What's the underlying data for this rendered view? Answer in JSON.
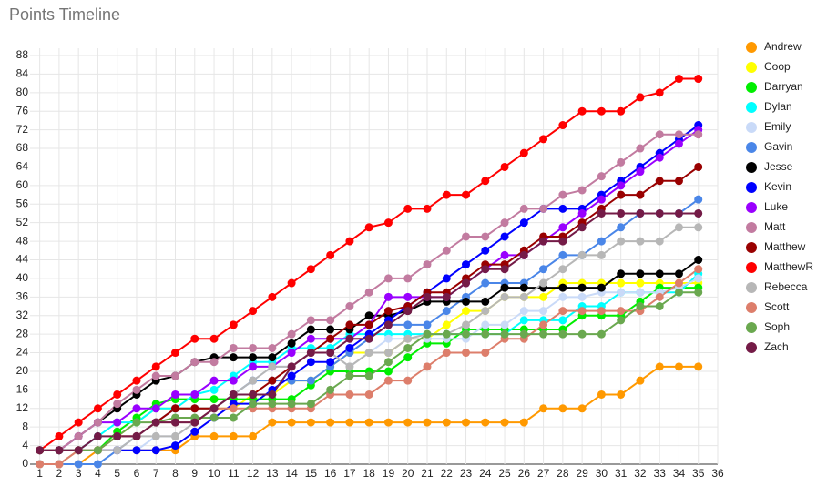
{
  "chart_data": {
    "type": "line",
    "title": "Points Timeline",
    "x": [
      1,
      2,
      3,
      4,
      5,
      6,
      7,
      8,
      9,
      10,
      11,
      12,
      13,
      14,
      15,
      16,
      17,
      18,
      19,
      20,
      21,
      22,
      23,
      24,
      25,
      26,
      27,
      28,
      29,
      30,
      31,
      32,
      33,
      34,
      35
    ],
    "xlim": [
      0.5,
      36
    ],
    "xticks": [
      1,
      2,
      3,
      4,
      5,
      6,
      7,
      8,
      9,
      10,
      11,
      12,
      13,
      14,
      15,
      16,
      17,
      18,
      19,
      20,
      21,
      22,
      23,
      24,
      25,
      26,
      27,
      28,
      29,
      30,
      31,
      32,
      33,
      34,
      35,
      36
    ],
    "ylim": [
      0,
      88
    ],
    "yticks": [
      0,
      4,
      8,
      12,
      16,
      20,
      24,
      28,
      32,
      36,
      40,
      44,
      48,
      52,
      56,
      60,
      64,
      68,
      72,
      76,
      80,
      84,
      88
    ],
    "grid": true,
    "legend": "right",
    "series": [
      {
        "name": "Andrew",
        "color": "#ff9900",
        "values": [
          0,
          0,
          0,
          3,
          3,
          3,
          3,
          3,
          6,
          6,
          6,
          6,
          9,
          9,
          9,
          9,
          9,
          9,
          9,
          9,
          9,
          9,
          9,
          9,
          9,
          9,
          12,
          12,
          12,
          15,
          15,
          18,
          21,
          21,
          21
        ]
      },
      {
        "name": "Coop",
        "color": "#ffff00",
        "values": [
          0,
          0,
          3,
          3,
          6,
          9,
          12,
          12,
          12,
          12,
          12,
          15,
          15,
          18,
          18,
          21,
          24,
          24,
          24,
          27,
          27,
          30,
          33,
          33,
          36,
          36,
          36,
          39,
          39,
          39,
          39,
          39,
          39,
          39,
          39
        ]
      },
      {
        "name": "Darryan",
        "color": "#00ee00",
        "values": [
          3,
          3,
          3,
          3,
          7,
          10,
          13,
          14,
          14,
          14,
          14,
          14,
          14,
          14,
          17,
          20,
          20,
          20,
          20,
          23,
          26,
          26,
          29,
          29,
          29,
          29,
          29,
          29,
          32,
          32,
          32,
          35,
          38,
          38,
          38
        ]
      },
      {
        "name": "Dylan",
        "color": "#00ffff",
        "values": [
          3,
          3,
          3,
          6,
          9,
          9,
          12,
          12,
          15,
          16,
          19,
          22,
          22,
          25,
          25,
          25,
          28,
          28,
          28,
          28,
          28,
          28,
          28,
          28,
          28,
          31,
          31,
          31,
          34,
          34,
          37,
          37,
          37,
          37,
          41
        ]
      },
      {
        "name": "Emily",
        "color": "#c9daf8",
        "values": [
          0,
          0,
          0,
          0,
          3,
          3,
          6,
          6,
          9,
          12,
          15,
          18,
          21,
          21,
          24,
          24,
          21,
          24,
          27,
          27,
          27,
          27,
          27,
          30,
          30,
          33,
          33,
          36,
          36,
          37,
          37,
          37,
          37,
          38,
          40
        ]
      },
      {
        "name": "Gavin",
        "color": "#4a86e8",
        "values": [
          0,
          0,
          0,
          0,
          3,
          6,
          9,
          12,
          12,
          12,
          15,
          18,
          18,
          18,
          18,
          21,
          24,
          27,
          30,
          30,
          30,
          33,
          36,
          39,
          39,
          39,
          42,
          45,
          45,
          48,
          51,
          54,
          54,
          54,
          57
        ]
      },
      {
        "name": "Jesse",
        "color": "#000000",
        "values": [
          3,
          3,
          6,
          9,
          12,
          15,
          18,
          19,
          22,
          23,
          23,
          23,
          23,
          26,
          29,
          29,
          29,
          32,
          32,
          33,
          35,
          35,
          35,
          35,
          38,
          38,
          38,
          38,
          38,
          38,
          41,
          41,
          41,
          41,
          44
        ]
      },
      {
        "name": "Kevin",
        "color": "#0000ff",
        "values": [
          3,
          3,
          3,
          3,
          3,
          3,
          3,
          4,
          7,
          10,
          13,
          13,
          16,
          19,
          22,
          22,
          25,
          28,
          31,
          34,
          37,
          40,
          43,
          46,
          49,
          52,
          55,
          55,
          55,
          58,
          61,
          64,
          67,
          70,
          73
        ]
      },
      {
        "name": "Luke",
        "color": "#9900ff",
        "values": [
          3,
          3,
          6,
          9,
          9,
          12,
          12,
          15,
          15,
          18,
          18,
          21,
          21,
          24,
          27,
          27,
          27,
          30,
          36,
          36,
          36,
          36,
          39,
          42,
          45,
          45,
          48,
          51,
          54,
          57,
          60,
          63,
          66,
          69,
          72
        ]
      },
      {
        "name": "Matt",
        "color": "#c27ba0",
        "values": [
          3,
          3,
          6,
          9,
          13,
          16,
          19,
          19,
          22,
          22,
          25,
          25,
          25,
          28,
          31,
          31,
          34,
          37,
          40,
          40,
          43,
          46,
          49,
          49,
          52,
          55,
          55,
          58,
          59,
          62,
          65,
          68,
          71,
          71,
          71
        ]
      },
      {
        "name": "Matthew",
        "color": "#990000",
        "values": [
          3,
          3,
          3,
          3,
          6,
          6,
          9,
          12,
          12,
          12,
          15,
          15,
          18,
          21,
          24,
          27,
          30,
          30,
          33,
          34,
          37,
          37,
          40,
          43,
          43,
          46,
          49,
          49,
          52,
          55,
          58,
          58,
          61,
          61,
          64
        ]
      },
      {
        "name": "MatthewR",
        "color": "#ff0000",
        "values": [
          3,
          6,
          9,
          12,
          15,
          18,
          21,
          24,
          27,
          27,
          30,
          33,
          36,
          39,
          42,
          45,
          48,
          51,
          52,
          55,
          55,
          58,
          58,
          61,
          64,
          67,
          70,
          73,
          76,
          76,
          76,
          79,
          80,
          83,
          83
        ]
      },
      {
        "name": "Rebecca",
        "color": "#b7b7b7",
        "values": [
          0,
          0,
          3,
          3,
          3,
          6,
          6,
          6,
          9,
          12,
          15,
          18,
          21,
          21,
          24,
          24,
          21,
          24,
          24,
          27,
          28,
          28,
          30,
          33,
          36,
          36,
          39,
          42,
          45,
          45,
          48,
          48,
          48,
          51,
          51
        ]
      },
      {
        "name": "Scott",
        "color": "#dd7e6b",
        "values": [
          0,
          0,
          3,
          3,
          6,
          6,
          9,
          9,
          9,
          12,
          12,
          12,
          12,
          12,
          12,
          15,
          15,
          15,
          18,
          18,
          21,
          24,
          24,
          24,
          27,
          27,
          30,
          33,
          33,
          33,
          33,
          33,
          36,
          39,
          42
        ]
      },
      {
        "name": "Soph",
        "color": "#6aa84f",
        "values": [
          3,
          3,
          3,
          3,
          6,
          9,
          9,
          10,
          10,
          10,
          10,
          13,
          13,
          13,
          13,
          16,
          19,
          19,
          22,
          25,
          28,
          28,
          28,
          28,
          28,
          28,
          28,
          28,
          28,
          28,
          31,
          34,
          34,
          37,
          37
        ]
      },
      {
        "name": "Zach",
        "color": "#741b47",
        "values": [
          3,
          3,
          3,
          6,
          6,
          6,
          9,
          9,
          9,
          12,
          15,
          15,
          15,
          21,
          24,
          24,
          27,
          27,
          30,
          33,
          36,
          36,
          39,
          42,
          42,
          45,
          48,
          48,
          51,
          54,
          54,
          54,
          54,
          54,
          54
        ]
      }
    ]
  }
}
